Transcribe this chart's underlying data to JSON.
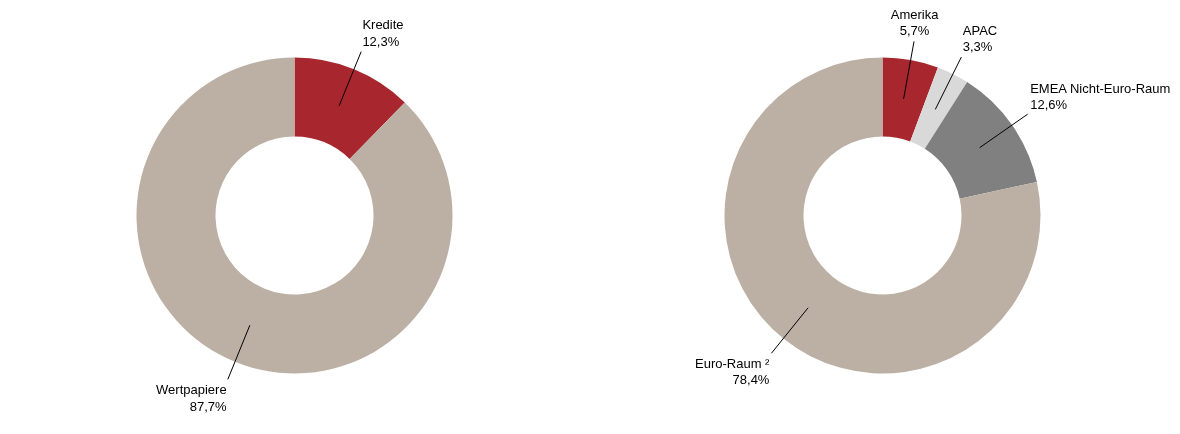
{
  "chart_data": [
    {
      "type": "donut",
      "categories": [
        "Kredite",
        "Wertpapiere"
      ],
      "values": [
        12.3,
        87.7
      ],
      "value_labels": [
        "12,3%",
        "87,7%"
      ],
      "colors": [
        "#a8272f",
        "#bcb0a5"
      ]
    },
    {
      "type": "donut",
      "categories": [
        "Amerika",
        "APAC",
        "EMEA Nicht-Euro-Raum",
        "Euro-Raum ²"
      ],
      "values": [
        5.7,
        3.3,
        12.6,
        78.4
      ],
      "value_labels": [
        "5,7%",
        "3,3%",
        "12,6%",
        "78,4%"
      ],
      "colors": [
        "#a8272f",
        "#d9d9d9",
        "#808080",
        "#bcb0a5"
      ]
    }
  ]
}
